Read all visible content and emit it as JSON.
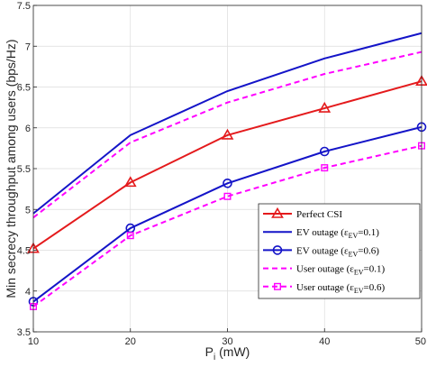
{
  "chart_data": {
    "type": "line",
    "x": [
      10,
      20,
      30,
      40,
      50
    ],
    "xlabel": {
      "main": "P",
      "sub": "i",
      "unit": " (mW)"
    },
    "ylabel": "Min secrecy throughput among users (bps/Hz)",
    "xlim": [
      10,
      50
    ],
    "ylim": [
      3.5,
      7.5
    ],
    "xticks": [
      "10",
      "20",
      "30",
      "40",
      "50"
    ],
    "yticks": [
      "3.5",
      "4",
      "4.5",
      "5",
      "5.5",
      "6",
      "6.5",
      "7",
      "7.5"
    ],
    "grid": true,
    "legend_position": "lower-right",
    "series": [
      {
        "name": "Perfect CSI",
        "values": [
          4.52,
          5.33,
          5.91,
          6.24,
          6.57
        ],
        "color": "#e41a1c",
        "dash": "solid",
        "marker": "triangle"
      },
      {
        "name": "EV outage (ε_EV=0.1)",
        "values": [
          4.95,
          5.91,
          6.45,
          6.85,
          7.16
        ],
        "color": "#1414c8",
        "dash": "solid",
        "marker": "none"
      },
      {
        "name": "EV outage (ε_EV=0.6)",
        "values": [
          3.87,
          4.77,
          5.32,
          5.71,
          6.01
        ],
        "color": "#1414c8",
        "dash": "solid",
        "marker": "circle"
      },
      {
        "name": "User outage (ε_EV=0.1)",
        "values": [
          4.9,
          5.82,
          6.31,
          6.66,
          6.93
        ],
        "color": "#ff00ff",
        "dash": "dashed",
        "marker": "none"
      },
      {
        "name": "User outage (ε_EV=0.6)",
        "values": [
          3.81,
          4.68,
          5.16,
          5.51,
          5.78
        ],
        "color": "#ff00ff",
        "dash": "dashed",
        "marker": "square"
      }
    ],
    "legend": [
      {
        "pre": "Perfect CSI",
        "sub": "",
        "post": ""
      },
      {
        "pre": "EV outage (ε",
        "sub": "EV",
        "post": "=0.1)"
      },
      {
        "pre": "EV outage (ε",
        "sub": "EV",
        "post": "=0.6)"
      },
      {
        "pre": "User outage (ε",
        "sub": "EV",
        "post": "=0.1)"
      },
      {
        "pre": "User outage (ε",
        "sub": "EV",
        "post": "=0.6)"
      }
    ]
  }
}
